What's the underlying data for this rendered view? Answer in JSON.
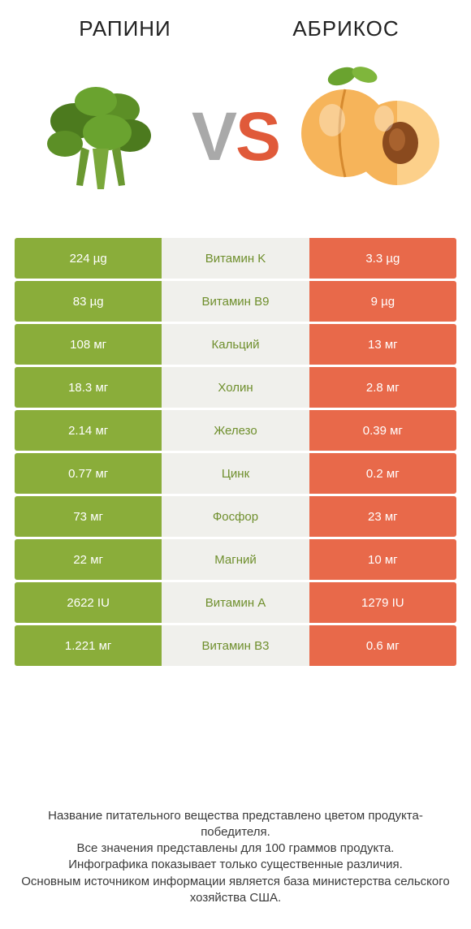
{
  "colors": {
    "left": "#8aad3a",
    "right": "#e8694a",
    "mid_bg": "#f0f0ec",
    "mid_text_left": "#6f8f2d",
    "mid_text_right": "#c94f33",
    "vs_grey": "#a9a9a9",
    "vs_accent": "#e05a3a",
    "title_color": "#222222",
    "footer_color": "#3a3a3a",
    "page_bg": "#ffffff"
  },
  "typography": {
    "title_fontsize": 26,
    "vs_fontsize": 84,
    "cell_fontsize": 15,
    "footer_fontsize": 15
  },
  "header": {
    "left_title": "РАПИНИ",
    "right_title": "АБРИКОС",
    "vs_v": "V",
    "vs_s": "S"
  },
  "rows": [
    {
      "left": "224 µg",
      "mid": "Витамин K",
      "right": "3.3 µg",
      "winner": "left"
    },
    {
      "left": "83 µg",
      "mid": "Витамин B9",
      "right": "9 µg",
      "winner": "left"
    },
    {
      "left": "108 мг",
      "mid": "Кальций",
      "right": "13 мг",
      "winner": "left"
    },
    {
      "left": "18.3 мг",
      "mid": "Холин",
      "right": "2.8 мг",
      "winner": "left"
    },
    {
      "left": "2.14 мг",
      "mid": "Железо",
      "right": "0.39 мг",
      "winner": "left"
    },
    {
      "left": "0.77 мг",
      "mid": "Цинк",
      "right": "0.2 мг",
      "winner": "left"
    },
    {
      "left": "73 мг",
      "mid": "Фосфор",
      "right": "23 мг",
      "winner": "left"
    },
    {
      "left": "22 мг",
      "mid": "Магний",
      "right": "10 мг",
      "winner": "left"
    },
    {
      "left": "2622 IU",
      "mid": "Витамин A",
      "right": "1279 IU",
      "winner": "left"
    },
    {
      "left": "1.221 мг",
      "mid": "Витамин B3",
      "right": "0.6 мг",
      "winner": "left"
    }
  ],
  "footer": {
    "line1": "Название питательного вещества представлено цветом продукта-победителя.",
    "line2": "Все значения представлены для 100 граммов продукта.",
    "line3": "Инфографика показывает только существенные различия.",
    "line4": "Основным источником информации является база министерства сельского хозяйства США."
  }
}
